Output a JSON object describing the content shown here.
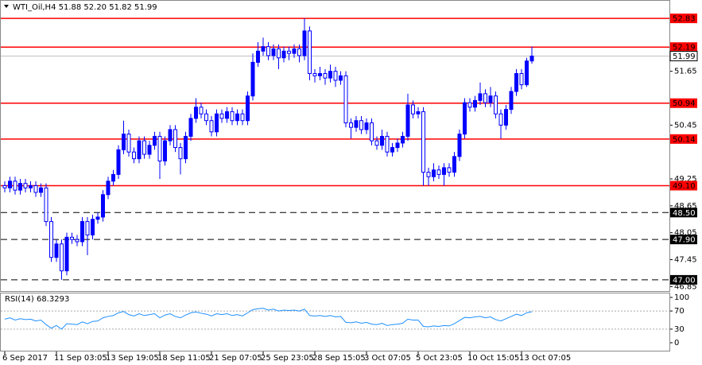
{
  "chart_data": {
    "type": "candlestick",
    "header": "WTI_Oil,H4  51.88 52.20 51.82 51.99",
    "up_color": "#0000ff",
    "down_color": "#0000ff",
    "categories": [
      "6 Sep 2017",
      null,
      null,
      null,
      null,
      null,
      null,
      null,
      null,
      null,
      "11 Sep 03:05",
      null,
      null,
      null,
      null,
      null,
      null,
      null,
      null,
      null,
      "13 Sep 19:05",
      null,
      null,
      null,
      null,
      null,
      null,
      null,
      null,
      null,
      "18 Sep 11:05",
      null,
      null,
      null,
      null,
      null,
      null,
      null,
      null,
      null,
      "21 Sep 07:05",
      null,
      null,
      null,
      null,
      null,
      null,
      null,
      null,
      null,
      "25 Sep 23:05",
      null,
      null,
      null,
      null,
      null,
      null,
      null,
      null,
      null,
      "28 Sep 15:05",
      null,
      null,
      null,
      null,
      null,
      null,
      null,
      null,
      null,
      "3 Oct 07:05",
      null,
      null,
      null,
      null,
      null,
      null,
      null,
      null,
      null,
      "5 Oct 23:05",
      null,
      null,
      null,
      null,
      null,
      null,
      null,
      null,
      null,
      "10 Oct 15:05",
      null,
      null,
      null,
      null,
      null,
      null,
      null,
      null,
      null,
      "13 Oct 07:05",
      null,
      null
    ],
    "open": [
      49.1,
      49.05,
      49.2,
      49.0,
      49.15,
      49.05,
      49.1,
      48.95,
      49.05,
      48.3,
      47.5,
      47.8,
      47.2,
      47.95,
      47.9,
      47.85,
      48.3,
      48.0,
      48.35,
      48.4,
      48.9,
      49.2,
      49.35,
      49.9,
      50.25,
      49.85,
      49.7,
      50.1,
      49.8,
      50.0,
      50.2,
      49.65,
      50.1,
      50.35,
      49.95,
      49.7,
      50.2,
      50.6,
      50.85,
      50.7,
      50.55,
      50.3,
      50.7,
      50.6,
      50.75,
      50.55,
      50.7,
      50.55,
      51.1,
      51.85,
      52.1,
      52.2,
      52.0,
      52.15,
      51.95,
      52.1,
      52.05,
      52.15,
      52.0,
      52.55,
      51.6,
      51.55,
      51.6,
      51.5,
      51.65,
      51.45,
      51.55,
      50.5,
      50.4,
      50.55,
      50.35,
      50.5,
      50.1,
      50.0,
      50.2,
      49.85,
      49.95,
      50.05,
      50.2,
      50.9,
      50.7,
      50.75,
      49.4,
      49.3,
      49.45,
      49.35,
      49.5,
      49.4,
      49.75,
      50.25,
      50.95,
      50.85,
      51.0,
      51.15,
      50.95,
      51.1,
      50.7,
      50.45,
      50.8,
      51.2,
      51.6,
      51.35,
      51.88
    ],
    "high": [
      49.2,
      49.3,
      49.3,
      49.25,
      49.25,
      49.2,
      49.2,
      49.15,
      49.15,
      48.4,
      47.9,
      47.9,
      48.05,
      48.05,
      48.0,
      48.4,
      48.4,
      48.45,
      48.5,
      49.0,
      49.3,
      49.45,
      50.0,
      50.55,
      50.35,
      49.95,
      50.2,
      50.2,
      50.1,
      50.3,
      50.3,
      50.2,
      50.45,
      50.45,
      50.05,
      50.3,
      50.7,
      51.05,
      50.95,
      50.8,
      50.65,
      50.8,
      50.8,
      50.85,
      50.85,
      50.8,
      50.8,
      51.2,
      52.05,
      52.3,
      52.4,
      52.3,
      52.25,
      52.25,
      52.2,
      52.2,
      52.25,
      52.25,
      52.83,
      52.65,
      51.7,
      51.75,
      51.7,
      51.8,
      51.75,
      51.65,
      51.65,
      50.6,
      50.65,
      50.65,
      50.6,
      50.6,
      50.2,
      50.35,
      50.3,
      50.05,
      50.15,
      50.3,
      51.15,
      51.0,
      50.85,
      50.85,
      49.5,
      49.6,
      49.55,
      49.6,
      49.6,
      49.85,
      50.35,
      51.05,
      51.05,
      51.1,
      51.4,
      51.25,
      51.3,
      51.2,
      50.8,
      50.9,
      51.3,
      51.7,
      51.7,
      51.95,
      52.2
    ],
    "low": [
      48.95,
      48.95,
      48.9,
      48.9,
      48.95,
      48.95,
      48.85,
      48.85,
      48.2,
      47.4,
      47.4,
      47.0,
      47.1,
      47.8,
      47.75,
      47.75,
      47.55,
      47.9,
      48.25,
      48.3,
      48.8,
      49.1,
      49.25,
      49.8,
      49.75,
      49.6,
      49.6,
      49.7,
      49.7,
      49.9,
      49.25,
      49.55,
      50.0,
      49.85,
      49.35,
      49.6,
      50.1,
      50.5,
      50.6,
      50.45,
      50.2,
      50.2,
      50.5,
      50.5,
      50.45,
      50.45,
      50.45,
      50.45,
      51.0,
      51.75,
      52.0,
      51.9,
      51.9,
      51.7,
      51.85,
      51.9,
      51.95,
      51.85,
      51.9,
      51.45,
      51.4,
      51.45,
      51.35,
      51.4,
      51.3,
      51.35,
      50.4,
      50.15,
      50.3,
      50.25,
      50.25,
      50.0,
      49.9,
      49.9,
      49.75,
      49.75,
      49.85,
      49.95,
      50.1,
      50.6,
      50.6,
      49.1,
      49.1,
      49.2,
      49.25,
      49.1,
      49.3,
      49.3,
      49.65,
      50.15,
      50.75,
      50.75,
      50.9,
      50.85,
      50.85,
      50.6,
      50.15,
      50.35,
      50.7,
      51.1,
      51.25,
      51.3,
      51.82
    ],
    "close": [
      49.05,
      49.2,
      49.0,
      49.15,
      49.05,
      49.1,
      48.95,
      49.05,
      48.3,
      47.5,
      47.8,
      47.2,
      47.95,
      47.9,
      47.85,
      48.3,
      48.0,
      48.35,
      48.4,
      48.9,
      49.2,
      49.35,
      49.9,
      50.25,
      49.85,
      49.7,
      50.1,
      49.8,
      50.0,
      50.2,
      49.65,
      50.1,
      50.35,
      49.95,
      49.7,
      50.2,
      50.6,
      50.85,
      50.7,
      50.55,
      50.3,
      50.7,
      50.6,
      50.75,
      50.55,
      50.7,
      50.55,
      51.1,
      51.85,
      52.1,
      52.2,
      52.0,
      52.15,
      51.95,
      52.1,
      52.05,
      52.15,
      52.0,
      52.55,
      51.6,
      51.55,
      51.6,
      51.5,
      51.65,
      51.45,
      51.55,
      50.5,
      50.4,
      50.55,
      50.35,
      50.5,
      50.1,
      50.0,
      50.2,
      49.85,
      49.95,
      50.05,
      50.2,
      50.9,
      50.7,
      50.75,
      49.4,
      49.3,
      49.45,
      49.35,
      49.5,
      49.4,
      49.75,
      50.25,
      50.95,
      50.85,
      51.0,
      51.15,
      50.95,
      51.1,
      50.7,
      50.45,
      50.8,
      51.2,
      51.6,
      51.35,
      51.88,
      51.99
    ],
    "ylim": [
      46.75,
      53.24
    ],
    "yticks": [
      46.85,
      47.45,
      48.05,
      48.65,
      49.25,
      50.45,
      51.65
    ],
    "levels": [
      {
        "value": 52.83,
        "style": "solid",
        "color": "#ff0000"
      },
      {
        "value": 52.19,
        "style": "solid",
        "color": "#ff0000"
      },
      {
        "value": 50.94,
        "style": "solid",
        "color": "#ff0000"
      },
      {
        "value": 50.14,
        "style": "solid",
        "color": "#ff0000"
      },
      {
        "value": 49.1,
        "label": "49.10",
        "style": "solid",
        "color": "#ff0000"
      },
      {
        "value": 48.5,
        "label": "48.50",
        "style": "dashed",
        "color": "#000000"
      },
      {
        "value": 47.9,
        "label": "47.90",
        "style": "dashed",
        "color": "#000000"
      },
      {
        "value": 47.0,
        "label": "47.00",
        "style": "dashed",
        "color": "#000000"
      }
    ],
    "indicator": {
      "title": "RSI(14) 68.3293",
      "color": "#1e90ff",
      "ylim": [
        -19.3,
        110.5
      ],
      "yticks": [
        100,
        70,
        30,
        0
      ],
      "levels": [
        70,
        30
      ],
      "values": [
        52,
        55,
        50,
        53,
        51,
        52,
        48,
        50,
        40,
        32,
        38,
        30,
        42,
        41,
        40,
        46,
        42,
        47,
        48,
        55,
        58,
        60,
        66,
        69,
        62,
        59,
        64,
        60,
        62,
        64,
        55,
        61,
        64,
        58,
        55,
        61,
        66,
        68,
        65,
        63,
        59,
        64,
        62,
        64,
        60,
        62,
        59,
        66,
        73,
        75,
        76,
        72,
        74,
        70,
        72,
        71,
        72,
        70,
        74,
        60,
        59,
        60,
        58,
        60,
        57,
        58,
        45,
        44,
        46,
        43,
        45,
        41,
        40,
        43,
        38,
        40,
        41,
        43,
        52,
        50,
        50,
        36,
        35,
        37,
        36,
        38,
        37,
        42,
        49,
        56,
        55,
        57,
        58,
        55,
        57,
        51,
        48,
        53,
        58,
        63,
        60,
        66,
        68.3293
      ]
    }
  }
}
